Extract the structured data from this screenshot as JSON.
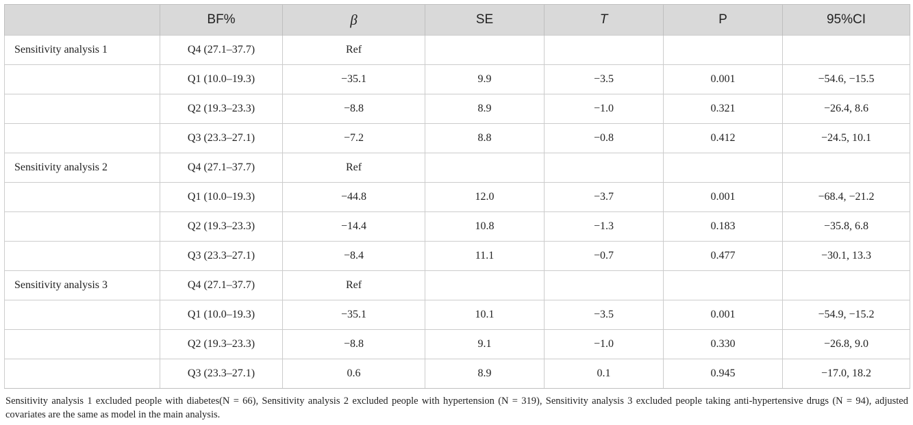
{
  "table": {
    "headers": [
      "",
      "BF%",
      "β",
      "SE",
      "T",
      "P",
      "95%CI"
    ],
    "rows": [
      [
        "Sensitivity analysis 1",
        "Q4 (27.1–37.7)",
        "Ref",
        "",
        "",
        "",
        ""
      ],
      [
        "",
        "Q1 (10.0–19.3)",
        "−35.1",
        "9.9",
        "−3.5",
        "0.001",
        "−54.6, −15.5"
      ],
      [
        "",
        "Q2 (19.3–23.3)",
        "−8.8",
        "8.9",
        "−1.0",
        "0.321",
        "−26.4, 8.6"
      ],
      [
        "",
        "Q3 (23.3–27.1)",
        "−7.2",
        "8.8",
        "−0.8",
        "0.412",
        "−24.5, 10.1"
      ],
      [
        "Sensitivity analysis 2",
        "Q4 (27.1–37.7)",
        "Ref",
        "",
        "",
        "",
        ""
      ],
      [
        "",
        "Q1 (10.0–19.3)",
        "−44.8",
        "12.0",
        "−3.7",
        "0.001",
        "−68.4, −21.2"
      ],
      [
        "",
        "Q2 (19.3–23.3)",
        "−14.4",
        "10.8",
        "−1.3",
        "0.183",
        "−35.8, 6.8"
      ],
      [
        "",
        "Q3 (23.3–27.1)",
        "−8.4",
        "11.1",
        "−0.7",
        "0.477",
        "−30.1, 13.3"
      ],
      [
        "Sensitivity analysis 3",
        "Q4 (27.1–37.7)",
        "Ref",
        "",
        "",
        "",
        ""
      ],
      [
        "",
        "Q1 (10.0–19.3)",
        "−35.1",
        "10.1",
        "−3.5",
        "0.001",
        "−54.9, −15.2"
      ],
      [
        "",
        "Q2 (19.3–23.3)",
        "−8.8",
        "9.1",
        "−1.0",
        "0.330",
        "−26.8, 9.0"
      ],
      [
        "",
        "Q3 (23.3–27.1)",
        "0.6",
        "8.9",
        "0.1",
        "0.945",
        "−17.0, 18.2"
      ]
    ]
  },
  "footnote": "Sensitivity analysis 1 excluded people with diabetes(N = 66), Sensitivity analysis 2 excluded people with hypertension (N = 319), Sensitivity analysis 3 excluded people taking anti-hypertensive drugs (N = 94), adjusted covariates are the same as model in the main analysis."
}
